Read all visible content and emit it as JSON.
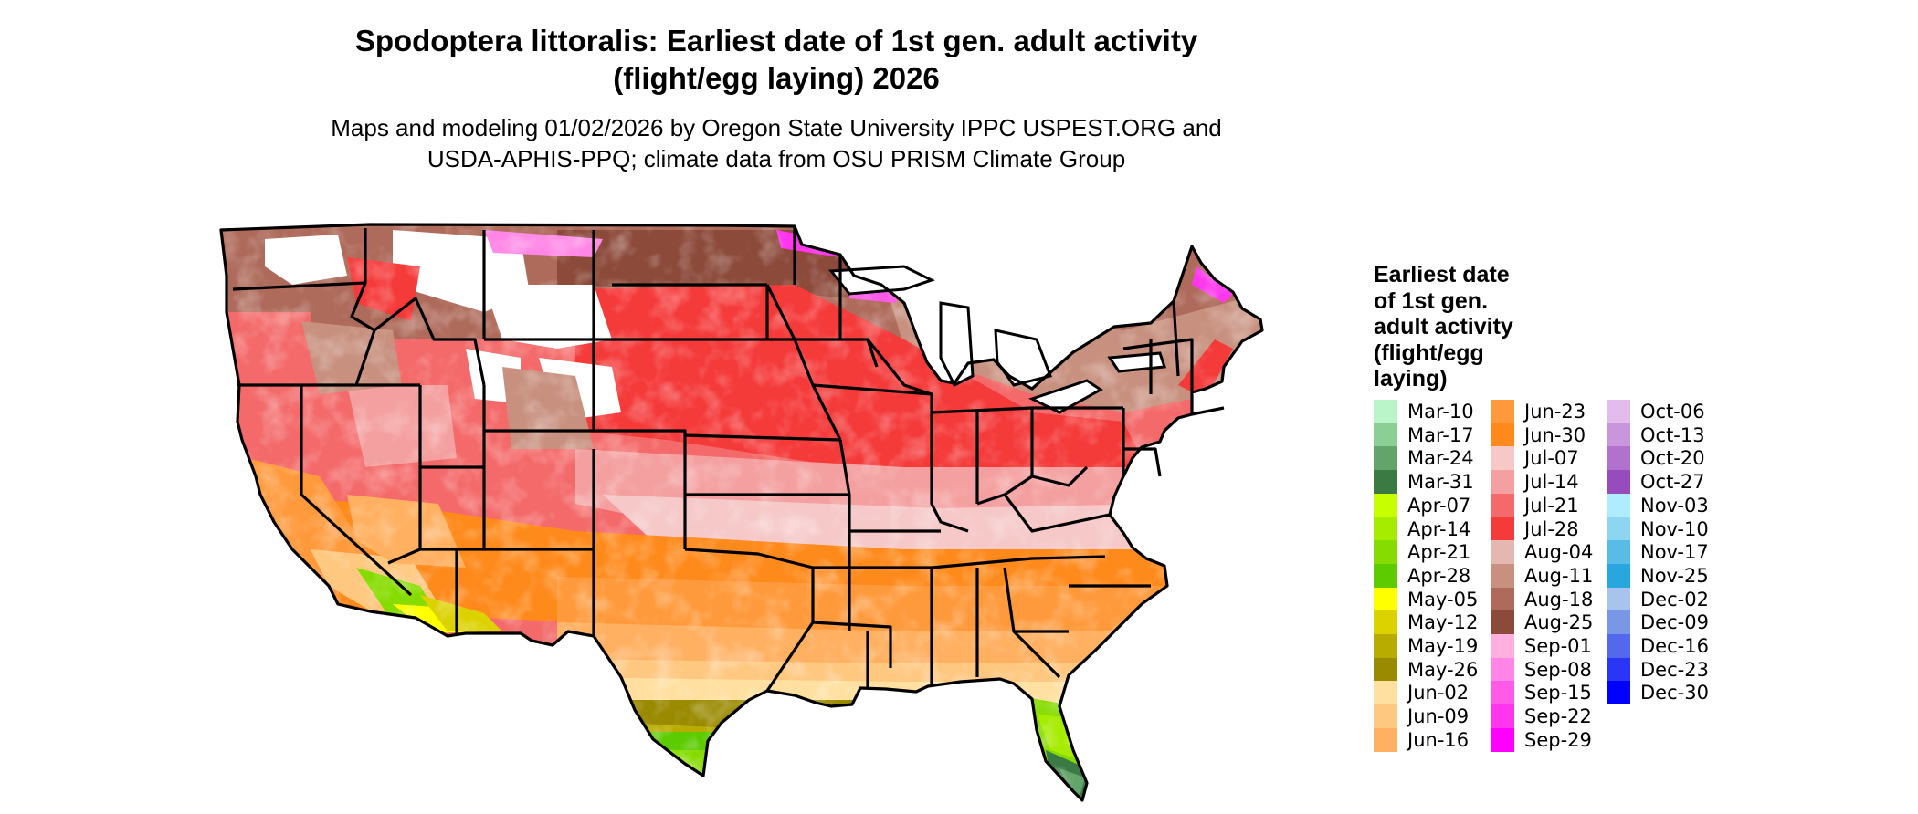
{
  "title_line1": "Spodoptera littoralis: Earliest date of 1st gen. adult activity",
  "title_line2": "(flight/egg laying) 2026",
  "subtitle_line1": "Maps and modeling 01/02/2026 by Oregon State University IPPC USPEST.ORG and",
  "subtitle_line2": "USDA-APHIS-PPQ; climate data from OSU PRISM Climate Group",
  "legend": {
    "title_lines": [
      "Earliest date",
      "of 1st gen.",
      "adult activity",
      "(flight/egg",
      "laying)"
    ],
    "columns": [
      [
        {
          "label": "Mar-10",
          "color": "#b9f5c8"
        },
        {
          "label": "Mar-17",
          "color": "#8ccf95"
        },
        {
          "label": "Mar-24",
          "color": "#62a46a"
        },
        {
          "label": "Mar-31",
          "color": "#3c7a44"
        },
        {
          "label": "Apr-07",
          "color": "#c8ff00"
        },
        {
          "label": "Apr-14",
          "color": "#a6ec00"
        },
        {
          "label": "Apr-21",
          "color": "#86dc00"
        },
        {
          "label": "Apr-28",
          "color": "#5ccc00"
        },
        {
          "label": "May-05",
          "color": "#ffff00"
        },
        {
          "label": "May-12",
          "color": "#dcd200"
        },
        {
          "label": "May-19",
          "color": "#b8ac00"
        },
        {
          "label": "May-26",
          "color": "#9a8a00"
        },
        {
          "label": "Jun-02",
          "color": "#ffe0a0"
        },
        {
          "label": "Jun-09",
          "color": "#ffc880"
        },
        {
          "label": "Jun-16",
          "color": "#ffb060"
        }
      ],
      [
        {
          "label": "Jun-23",
          "color": "#ff9a3c"
        },
        {
          "label": "Jun-30",
          "color": "#ff8a1c"
        },
        {
          "label": "Jul-07",
          "color": "#f6c8c8"
        },
        {
          "label": "Jul-14",
          "color": "#f4a0a0"
        },
        {
          "label": "Jul-21",
          "color": "#f46a6a"
        },
        {
          "label": "Jul-28",
          "color": "#f53a3a"
        },
        {
          "label": "Aug-04",
          "color": "#e4b8b0"
        },
        {
          "label": "Aug-11",
          "color": "#c8907e"
        },
        {
          "label": "Aug-18",
          "color": "#ae6a5a"
        },
        {
          "label": "Aug-25",
          "color": "#8c4a3a"
        },
        {
          "label": "Sep-01",
          "color": "#ffb0e0"
        },
        {
          "label": "Sep-08",
          "color": "#ff86e6"
        },
        {
          "label": "Sep-15",
          "color": "#ff5ae8"
        },
        {
          "label": "Sep-22",
          "color": "#ff36ee"
        },
        {
          "label": "Sep-29",
          "color": "#ff00ff"
        }
      ],
      [
        {
          "label": "Oct-06",
          "color": "#e4bcec"
        },
        {
          "label": "Oct-13",
          "color": "#c896dc"
        },
        {
          "label": "Oct-20",
          "color": "#b072cc"
        },
        {
          "label": "Oct-27",
          "color": "#984cbc"
        },
        {
          "label": "Nov-03",
          "color": "#b0ecff"
        },
        {
          "label": "Nov-10",
          "color": "#8cd6f2"
        },
        {
          "label": "Nov-17",
          "color": "#58bce6"
        },
        {
          "label": "Nov-25",
          "color": "#28a6de"
        },
        {
          "label": "Dec-02",
          "color": "#a8c4ec"
        },
        {
          "label": "Dec-09",
          "color": "#7a96e6"
        },
        {
          "label": "Dec-16",
          "color": "#5468ee"
        },
        {
          "label": "Dec-23",
          "color": "#2a36f4"
        },
        {
          "label": "Dec-30",
          "color": "#0000ff"
        }
      ]
    ]
  }
}
